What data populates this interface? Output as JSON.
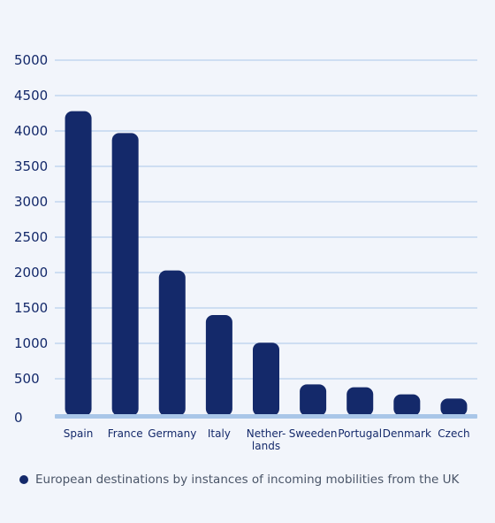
{
  "chart_data": {
    "type": "bar",
    "categories": [
      [
        "Spain"
      ],
      [
        "France"
      ],
      [
        "Germany"
      ],
      [
        "Italy"
      ],
      [
        "Nether-",
        "lands"
      ],
      [
        "Sweeden"
      ],
      [
        "Portugal"
      ],
      [
        "Denmark"
      ],
      [
        "Czech"
      ]
    ],
    "series": [
      {
        "name": "European destinations by instances of incoming mobilities from the UK",
        "values": [
          4280,
          3970,
          2030,
          1400,
          1010,
          420,
          380,
          280,
          220
        ]
      }
    ],
    "ylim": [
      0,
      5000
    ],
    "yticks": [
      0,
      500,
      1000,
      1500,
      2000,
      2500,
      3000,
      3500,
      4000,
      4500,
      5000
    ],
    "grid": true,
    "legend_position": "bottom-left",
    "colors": {
      "bar": "#14296a",
      "grid": "#a9c6e8",
      "baseline": "#a9c6e8",
      "tick_text": "#14296a",
      "legend_text": "#4a5568",
      "background": "#f2f5fb"
    }
  }
}
